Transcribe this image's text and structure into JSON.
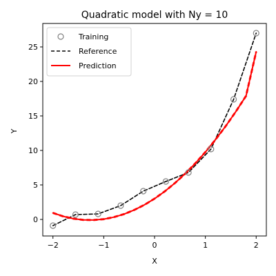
{
  "chart_data": {
    "type": "line",
    "title": "Quadratic model with Ny = 10",
    "xlabel": "X",
    "ylabel": "Y",
    "xlim": [
      -2.2,
      2.2
    ],
    "ylim": [
      -2.4,
      28.4
    ],
    "xticks": [
      -2,
      -1,
      0,
      1,
      2
    ],
    "xtick_labels": [
      "−2",
      "−1",
      "0",
      "1",
      "2"
    ],
    "yticks": [
      0,
      5,
      10,
      15,
      20,
      25
    ],
    "ytick_labels": [
      "0",
      "5",
      "10",
      "15",
      "20",
      "25"
    ],
    "grid": false,
    "legend_position": "top-left",
    "series": [
      {
        "name": "Training",
        "kind": "scatter",
        "color": "#808080",
        "x": [
          -2.0,
          -1.556,
          -1.111,
          -0.667,
          -0.222,
          0.222,
          0.667,
          1.111,
          1.556,
          2.0
        ],
        "y": [
          -0.9,
          0.7,
          0.8,
          2.0,
          4.1,
          5.5,
          6.8,
          10.2,
          17.4,
          27.0
        ]
      },
      {
        "name": "Reference",
        "kind": "line",
        "color": "#000000",
        "dash": true,
        "x": [
          -2.0,
          -1.556,
          -1.111,
          -0.667,
          -0.222,
          0.222,
          0.667,
          1.111,
          1.556,
          2.0
        ],
        "y": [
          -0.9,
          0.7,
          0.8,
          2.0,
          4.1,
          5.5,
          6.8,
          10.2,
          17.4,
          27.0
        ]
      },
      {
        "name": "Prediction",
        "kind": "curve",
        "color": "#ff0000",
        "x": [
          -2.0,
          -1.8,
          -1.6,
          -1.4,
          -1.2,
          -1.0,
          -0.8,
          -0.6,
          -0.4,
          -0.2,
          0.0,
          0.2,
          0.4,
          0.6,
          0.8,
          1.0,
          1.2,
          1.4,
          1.6,
          1.8,
          2.0
        ],
        "y": [
          0.94,
          0.45,
          0.11,
          -0.07,
          -0.09,
          0.04,
          0.33,
          0.77,
          1.37,
          2.11,
          3.01,
          4.06,
          5.26,
          6.61,
          8.11,
          9.76,
          11.57,
          13.52,
          15.63,
          17.89,
          24.3
        ]
      }
    ]
  }
}
